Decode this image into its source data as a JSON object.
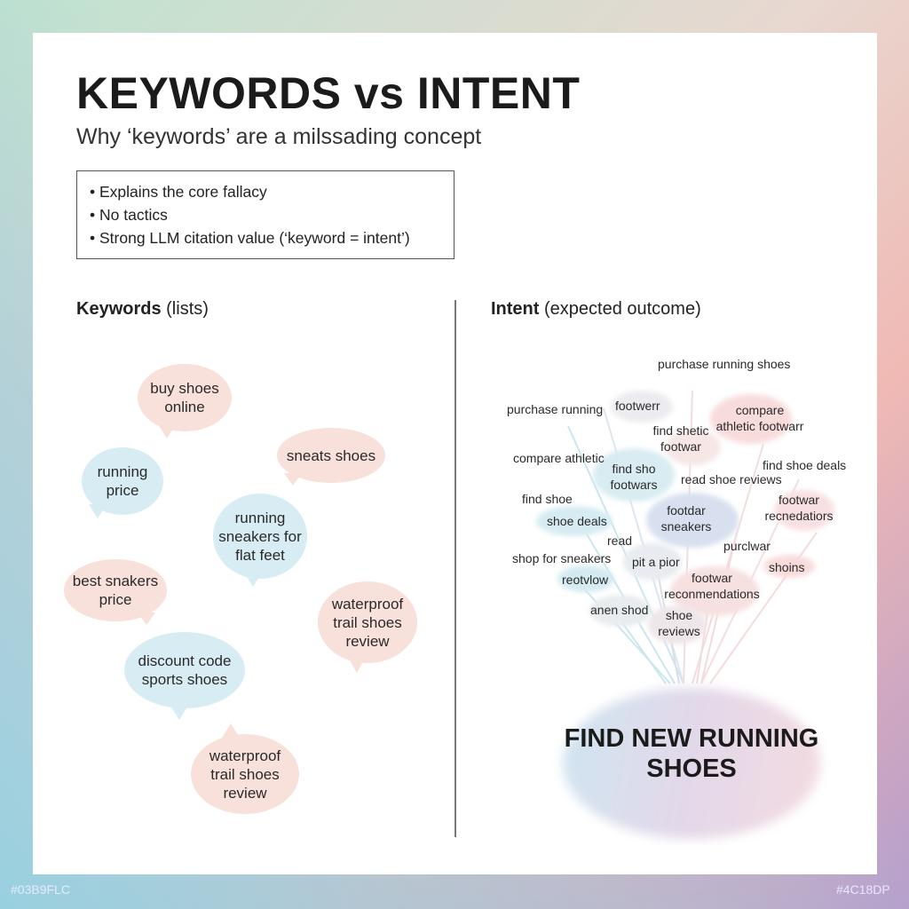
{
  "title": "KEYWORDS vs INTENT",
  "subtitle": "Why ‘keywords’ are a milssading concept",
  "bullets": [
    "Explains the core fallacy",
    "No tactics",
    "Strong LLM citation value (‘keyword = intent’)"
  ],
  "left": {
    "heading_bold": "Keywords",
    "heading_rest": " (lists)",
    "bubbles": [
      "buy shoes online",
      "running price",
      "sneats shoes",
      "running sneakers for flat feet",
      "best snakers price",
      "waterproof trail shoes review",
      "discount code sports shoes",
      "waterproof trail shoes review"
    ]
  },
  "right": {
    "heading_bold": "Intent",
    "heading_rest": " (expected outcome)",
    "items": [
      "purchase running shoes",
      "purchase running",
      "footwerr",
      "compare athletic footwarr",
      "find shetic footwar",
      "compare athletic",
      "find sho footwars",
      "find shoe deals",
      "read shoe reviews",
      "find shoe",
      "shoe deals",
      "footdar sneakers",
      "footwar recnedatiors",
      "read",
      "purclwar",
      "shop for sneakers",
      "pit a pior",
      "shoins",
      "reotvlow",
      "footwar reconmendations",
      "anen shod",
      "shoe reviews"
    ],
    "goal": "FIND NEW RUNNING SHOES"
  },
  "footer": {
    "left_code": "#03B9FLC",
    "right_code": "#4C18DP"
  },
  "colors": {
    "pink_bubble": "#f8e0db",
    "blue_bubble": "#d8edf3"
  }
}
